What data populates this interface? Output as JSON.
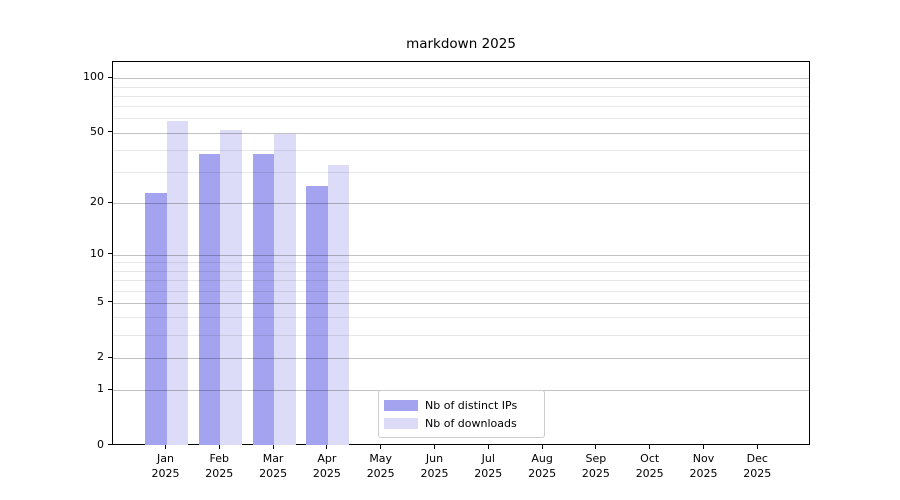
{
  "chart_data": {
    "type": "bar",
    "title": "markdown 2025",
    "categories": [
      "Jan",
      "Feb",
      "Mar",
      "Apr",
      "May",
      "Jun",
      "Jul",
      "Aug",
      "Sep",
      "Oct",
      "Nov",
      "Dec"
    ],
    "category_year": "2025",
    "series": [
      {
        "name": "Nb of distinct IPs",
        "color": "#a3a3f0",
        "values": [
          23,
          38,
          38,
          25,
          null,
          null,
          null,
          null,
          null,
          null,
          null,
          null
        ]
      },
      {
        "name": "Nb of downloads",
        "color": "#dcdcf8",
        "values": [
          58,
          52,
          49,
          33,
          null,
          null,
          null,
          null,
          null,
          null,
          null,
          null
        ]
      }
    ],
    "xlabel": "",
    "ylabel": "",
    "y_axis": {
      "scale": "log10(1+x)",
      "major_ticks": [
        100,
        50,
        20,
        10,
        5,
        2,
        1,
        0
      ],
      "minor_gridlines": [
        3,
        4,
        6,
        7,
        8,
        9,
        30,
        40,
        60,
        70,
        80,
        90
      ],
      "ylim": [
        0,
        123
      ]
    },
    "grid": true,
    "legend": {
      "position": "lower center"
    },
    "colors": {
      "major_grid": "#c2c2c2",
      "minor_grid": "#e8e8e8",
      "spine": "#000000",
      "text": "#000000",
      "legend_border": "#cccccc"
    }
  }
}
